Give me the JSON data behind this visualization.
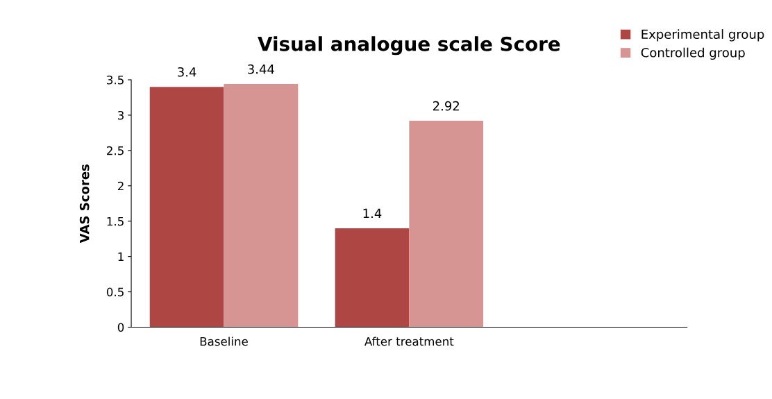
{
  "chart_data": {
    "type": "bar",
    "title": "Visual analogue scale Score",
    "ylabel": "VAS Scores",
    "categories": [
      "Baseline",
      "After treatment",
      null
    ],
    "series": [
      {
        "name": "Experimental group",
        "color": "#ae4744",
        "values": [
          3.4,
          1.4,
          null
        ]
      },
      {
        "name": "Controlled group",
        "color": "#d69593",
        "values": [
          3.44,
          2.92,
          null
        ]
      }
    ],
    "ylim": [
      0,
      3.5
    ],
    "yticks": [
      0,
      0.5,
      1,
      1.5,
      2,
      2.5,
      3,
      3.5
    ],
    "data_labels": true,
    "grid": false,
    "legend": "top right"
  }
}
